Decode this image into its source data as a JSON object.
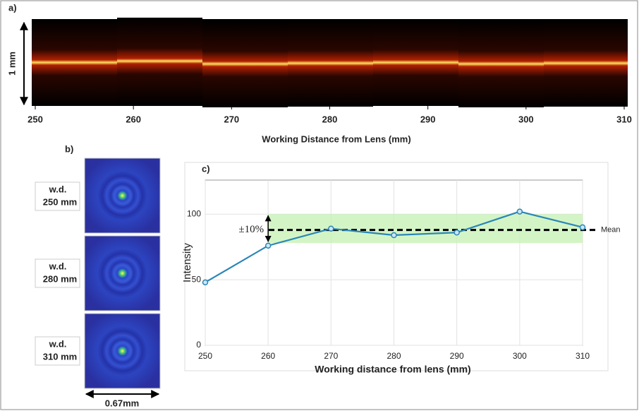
{
  "chart_data": [
    {
      "type": "image",
      "label": "a)",
      "ylabel": "1 mm",
      "xlabel": "Working Distance from Lens (mm)",
      "xlim": [
        250,
        310
      ],
      "xticks": [
        250,
        260,
        270,
        280,
        290,
        300,
        310
      ]
    },
    {
      "type": "line",
      "label": "c)",
      "xlabel": "Working distance from lens (mm)",
      "ylabel": "Intensity",
      "x": [
        250,
        260,
        270,
        280,
        290,
        300,
        310
      ],
      "series": [
        {
          "name": "Intensity",
          "color": "#2b86b8",
          "values": [
            48,
            76,
            89,
            84,
            86,
            102,
            90
          ]
        }
      ],
      "xlim": [
        250,
        310
      ],
      "xticks": [
        250,
        260,
        270,
        280,
        290,
        300,
        310
      ],
      "ylim": [
        0,
        126
      ],
      "yticks": [
        0,
        50,
        100
      ],
      "grid": true,
      "mean": 88,
      "mean_label": "Mean",
      "band": [
        78,
        100
      ],
      "band_xlim": [
        260,
        310
      ],
      "band_label": "±10%"
    }
  ],
  "panel_b": {
    "label": "b)",
    "images": [
      [
        "w.d.",
        "250 mm"
      ],
      [
        "w.d.",
        "280 mm"
      ],
      [
        "w.d.",
        "310 mm"
      ]
    ],
    "scale": "0.67mm"
  }
}
